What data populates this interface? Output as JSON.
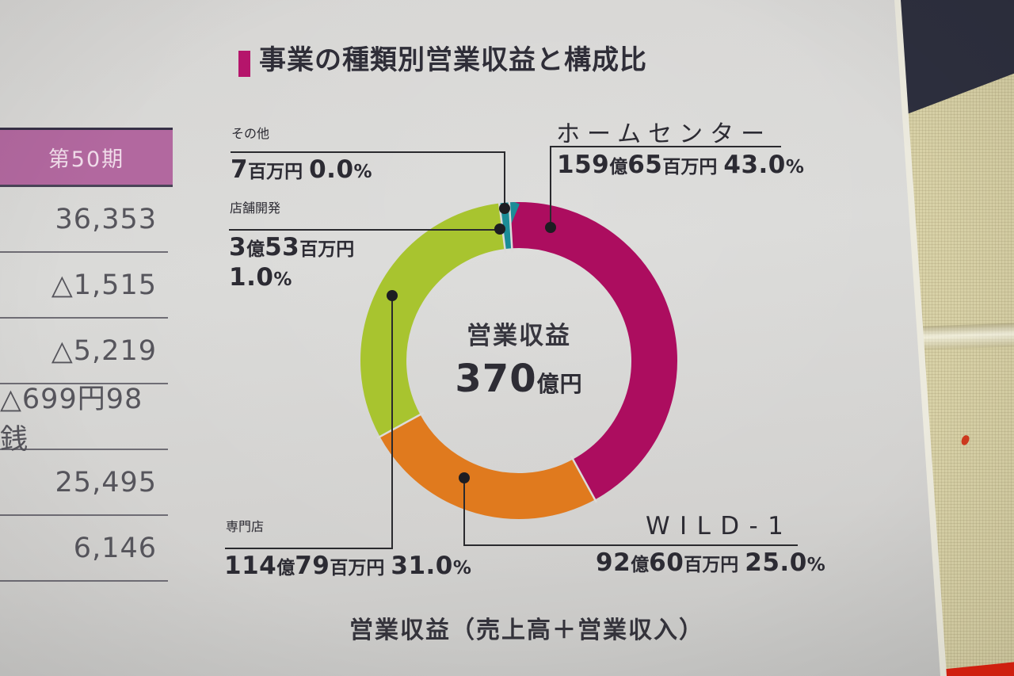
{
  "title": "事業の種類別営業収益と構成比",
  "side_table": {
    "header": "第50期",
    "rows": [
      "36,353",
      "△1,515",
      "△5,219",
      "△699円98銭",
      "25,495",
      "6,146"
    ]
  },
  "donut_center": {
    "label": "営業収益",
    "value": "370",
    "unit": "億円"
  },
  "callouts": {
    "sonota": {
      "name": "その他",
      "value_parts": [
        {
          "t": "7",
          "n": true
        },
        {
          "t": "百万円",
          "n": false
        },
        {
          "t": " ",
          "n": false
        },
        {
          "t": "0.0",
          "n": true
        },
        {
          "t": "%",
          "n": false
        }
      ]
    },
    "homecenter": {
      "name": "ホームセンター",
      "value_parts": [
        {
          "t": "159",
          "n": true
        },
        {
          "t": "億",
          "n": false
        },
        {
          "t": "65",
          "n": true
        },
        {
          "t": "百万円",
          "n": false
        },
        {
          "t": " ",
          "n": false
        },
        {
          "t": "43.0",
          "n": true
        },
        {
          "t": "%",
          "n": false
        }
      ]
    },
    "tenpokaihatsu": {
      "name": "店舗開発",
      "amount_parts": [
        {
          "t": "3",
          "n": true
        },
        {
          "t": "億",
          "n": false
        },
        {
          "t": "53",
          "n": true
        },
        {
          "t": "百万円",
          "n": false
        }
      ],
      "percent_parts": [
        {
          "t": "1.0",
          "n": true
        },
        {
          "t": "%",
          "n": false
        }
      ]
    },
    "senmonten": {
      "name": "専門店",
      "value_parts": [
        {
          "t": "114",
          "n": true
        },
        {
          "t": "億",
          "n": false
        },
        {
          "t": "79",
          "n": true
        },
        {
          "t": "百万円",
          "n": false
        },
        {
          "t": " ",
          "n": false
        },
        {
          "t": "31.0",
          "n": true
        },
        {
          "t": "%",
          "n": false
        }
      ]
    },
    "wild1": {
      "name": "WILD-1",
      "value_parts": [
        {
          "t": "92",
          "n": true
        },
        {
          "t": "億",
          "n": false
        },
        {
          "t": "60",
          "n": true
        },
        {
          "t": "百万円",
          "n": false
        },
        {
          "t": " ",
          "n": false
        },
        {
          "t": "25.0",
          "n": true
        },
        {
          "t": "%",
          "n": false
        }
      ]
    }
  },
  "caption": "営業収益（売上高＋営業収入）",
  "colors": {
    "title_bullet": "#b5156b",
    "period_header_bg": "#b2689f",
    "segment_homecenter": "#ac0d5f",
    "segment_wild1": "#e07a1e",
    "segment_senmonten": "#a8c42f",
    "segment_tenpokaihatsu": "#1b8c97",
    "leader_line": "#2a2a2e"
  },
  "chart_data": {
    "type": "pie",
    "title": "事業の種類別営業収益と構成比",
    "categories": [
      "ホームセンター",
      "WILD-1",
      "専門店",
      "店舗開発",
      "その他"
    ],
    "values_percent": [
      43.0,
      25.0,
      31.0,
      1.0,
      0.0
    ],
    "amount_labels": [
      "159億65百万円",
      "92億60百万円",
      "114億79百万円",
      "3億53百万円",
      "7百万円"
    ],
    "colors": [
      "#ac0d5f",
      "#e07a1e",
      "#a8c42f",
      "#1b8c97",
      "#17868f"
    ],
    "total_label": "営業収益 370億円",
    "total_value": 370,
    "total_unit": "億円",
    "start_angle_deg": -3.5,
    "direction": "clockwise",
    "legend": "none",
    "footnote": "営業収益（売上高＋営業収入）"
  }
}
